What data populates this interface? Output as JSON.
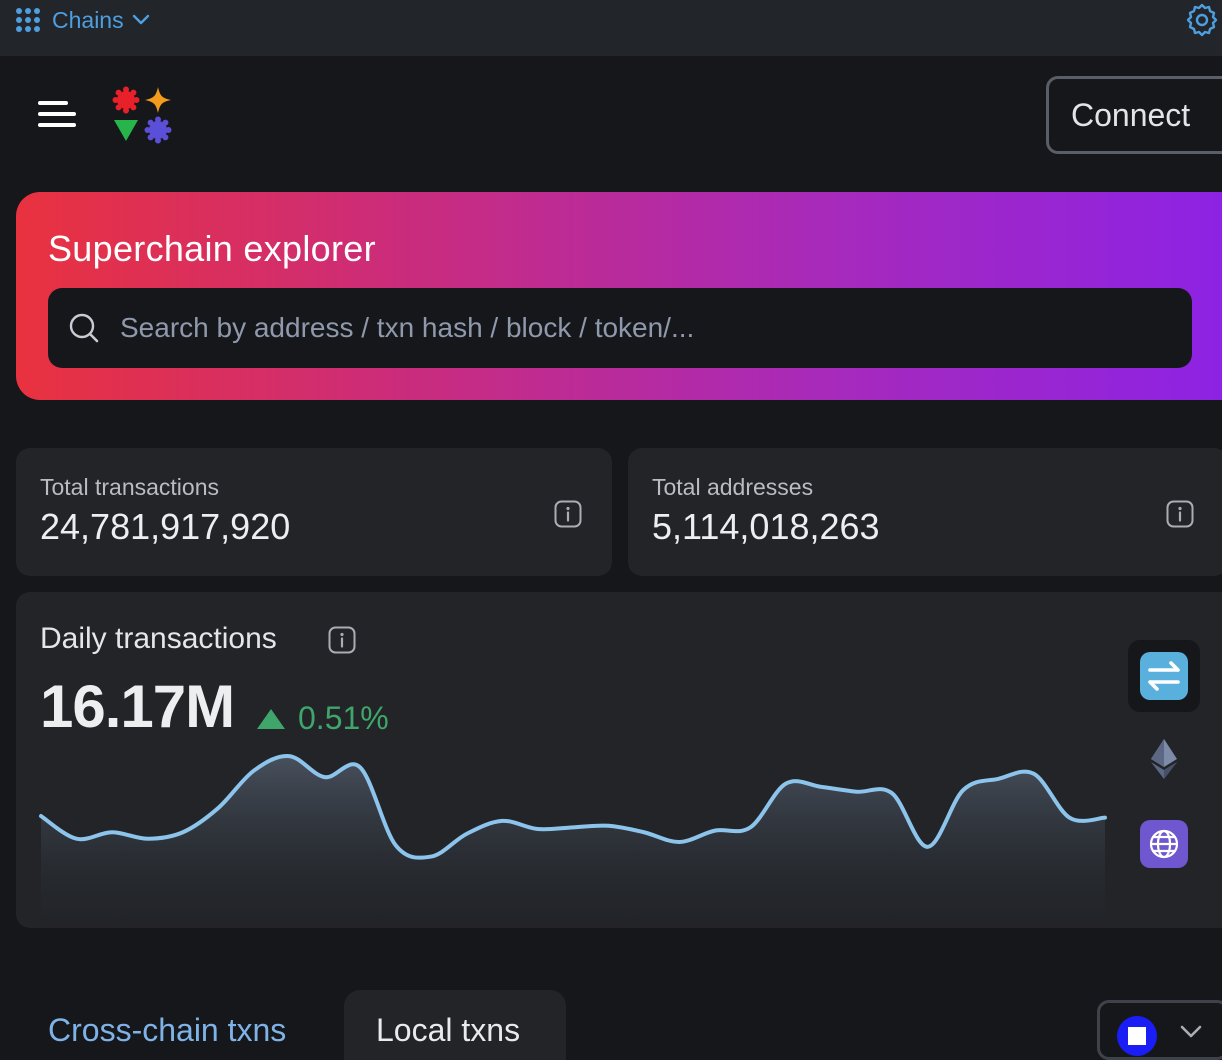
{
  "topbar": {
    "chains_label": "Chains"
  },
  "header": {
    "connect_label": "Connect"
  },
  "hero": {
    "title": "Superchain explorer",
    "search_placeholder": "Search by address / txn hash / block / token/...",
    "search_value": ""
  },
  "stats": [
    {
      "label": "Total transactions",
      "value": "24,781,917,920"
    },
    {
      "label": "Total addresses",
      "value": "5,114,018,263"
    }
  ],
  "daily": {
    "title": "Daily transactions",
    "value": "16.17M",
    "change": "0.51%",
    "change_direction": "up",
    "colors": {
      "line": "#8cc4ec",
      "up": "#3fa56a"
    }
  },
  "chain_selector": [
    {
      "icon": "swap-arrows-icon",
      "selected": true
    },
    {
      "icon": "ethereum-icon",
      "selected": false
    },
    {
      "icon": "globe-icon",
      "selected": false
    }
  ],
  "tabs": [
    {
      "label": "Cross-chain txns",
      "active": false
    },
    {
      "label": "Local txns",
      "active": true
    }
  ],
  "chart_data": {
    "type": "area",
    "series": [
      {
        "values": [
          58,
          44,
          48,
          44,
          48,
          63,
          86,
          95,
          82,
          88,
          40,
          33,
          47,
          55,
          50,
          51,
          52,
          48,
          42,
          49,
          51,
          78,
          76,
          73,
          72,
          39,
          74,
          81,
          84,
          57,
          57
        ]
      }
    ],
    "ylim": [
      0,
      100
    ],
    "xlabel": "",
    "ylabel": "",
    "grid": false
  }
}
